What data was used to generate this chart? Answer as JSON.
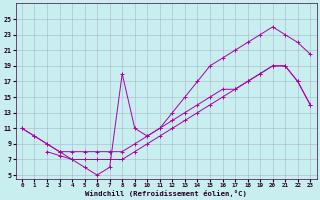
{
  "xlabel": "Windchill (Refroidissement éolien,°C)",
  "background_color": "#c8eef0",
  "line_color": "#aa00aa",
  "grid_color": "#aab8cc",
  "xlim_min": -0.5,
  "xlim_max": 23.5,
  "ylim_min": 4.5,
  "ylim_max": 27.0,
  "xtick_vals": [
    0,
    1,
    2,
    3,
    4,
    5,
    6,
    7,
    8,
    9,
    10,
    11,
    12,
    13,
    14,
    15,
    16,
    17,
    18,
    19,
    20,
    21,
    22,
    23
  ],
  "ytick_vals": [
    5,
    7,
    9,
    11,
    13,
    15,
    17,
    19,
    21,
    23,
    25
  ],
  "curve1_x": [
    0,
    1,
    2,
    3,
    4,
    5,
    6,
    7,
    8,
    9,
    10,
    11,
    12,
    13,
    14,
    15,
    16,
    17,
    18,
    19,
    20,
    21,
    22,
    23
  ],
  "curve1_y": [
    11,
    10,
    9,
    8,
    8,
    8,
    8,
    8,
    8,
    9,
    10,
    11,
    13,
    15,
    17,
    19,
    20,
    21,
    22,
    23,
    24,
    23,
    22,
    20.5
  ],
  "curve2_x": [
    0,
    1,
    2,
    3,
    4,
    5,
    6,
    7,
    8,
    9,
    10,
    11,
    12,
    13,
    14,
    15,
    16,
    17,
    18,
    19,
    20,
    21,
    22,
    23
  ],
  "curve2_y": [
    11,
    10,
    9,
    8,
    7,
    7,
    7,
    7,
    7,
    8,
    9,
    10,
    11,
    12,
    13,
    14,
    15,
    16,
    17,
    18,
    19,
    19,
    17,
    14
  ],
  "curve3_x": [
    2,
    3,
    4,
    5,
    6,
    7,
    8,
    9,
    10,
    11,
    12,
    13,
    14,
    15,
    16,
    17,
    18,
    19,
    20,
    21,
    22,
    23
  ],
  "curve3_y": [
    8,
    7.5,
    7,
    6,
    5,
    6,
    18,
    11,
    10,
    11,
    12,
    13,
    14,
    15,
    16,
    16,
    17,
    18,
    19,
    19,
    17,
    14
  ]
}
